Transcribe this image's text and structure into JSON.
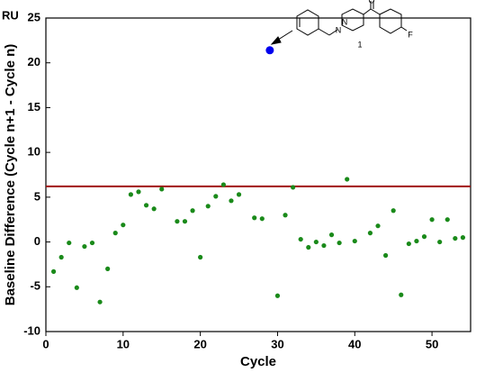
{
  "chart_data": {
    "type": "scatter",
    "y_unit": "RU",
    "xlabel": "Cycle",
    "ylabel": "Baseline Difference (Cycle n+1 - Cycle n)",
    "xlim": [
      0,
      55
    ],
    "ylim": [
      -10,
      25
    ],
    "xticks": [
      0,
      10,
      20,
      30,
      40,
      50
    ],
    "yticks": [
      -10,
      -5,
      0,
      5,
      10,
      15,
      20,
      25
    ],
    "series": [
      {
        "color": "#1a8a1a",
        "x": [
          1,
          2,
          3,
          4,
          5,
          6,
          7,
          8,
          9,
          10,
          11,
          12,
          13,
          14,
          15,
          17,
          18,
          19,
          20,
          21,
          22,
          23,
          24,
          25,
          27,
          28,
          30,
          31,
          32,
          33,
          34,
          35,
          36,
          37,
          38,
          39,
          40,
          42,
          43,
          44,
          45,
          46,
          47,
          48,
          49,
          50,
          51,
          52,
          53,
          54
        ],
        "values": [
          -3.3,
          -1.7,
          -0.1,
          -5.1,
          -0.5,
          -0.1,
          -6.7,
          -3.0,
          1.0,
          1.9,
          5.3,
          5.6,
          4.1,
          3.7,
          5.9,
          2.3,
          2.3,
          3.5,
          -1.7,
          4.0,
          5.1,
          6.4,
          4.6,
          5.3,
          2.7,
          2.6,
          -6.0,
          3.0,
          6.1,
          0.3,
          -0.6,
          0.0,
          -0.4,
          0.8,
          -0.1,
          7.0,
          0.1,
          1.0,
          1.8,
          -1.5,
          3.5,
          -5.9,
          -0.2,
          0.1,
          0.6,
          2.5,
          0.0,
          2.5,
          0.4,
          0.5
        ]
      }
    ],
    "threshold": {
      "value": 6.2,
      "color": "#a01010"
    },
    "marker": {
      "x": 29,
      "y": 21.4,
      "color": "#0000ee"
    },
    "inset": {
      "compound_label": "1",
      "atoms": [
        "N",
        "N",
        "O",
        "F"
      ]
    }
  }
}
